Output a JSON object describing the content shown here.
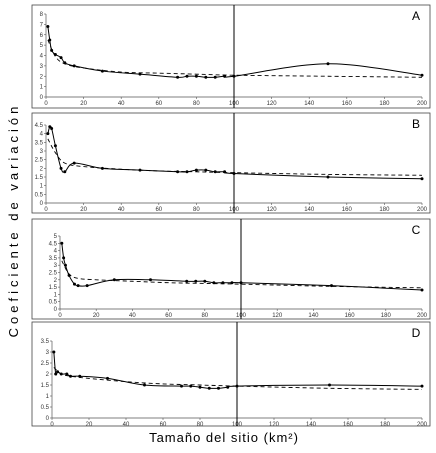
{
  "figure": {
    "ylabel": "Coeficiente de variación",
    "xlabel": "Tamaño del sitio (km²)"
  },
  "chart_data": [
    {
      "type": "line",
      "label": "A",
      "xlim": [
        0,
        200
      ],
      "ylim": [
        0,
        8
      ],
      "xticks": [
        0,
        20,
        40,
        60,
        80,
        100,
        120,
        140,
        160,
        180,
        200
      ],
      "yticks": [
        0,
        1,
        2,
        3,
        4,
        5,
        6,
        7,
        8
      ],
      "reference_line_x": 100,
      "series": [
        {
          "style": "solid-with-markers",
          "x": [
            1,
            2,
            3,
            5,
            8,
            10,
            15,
            30,
            50,
            70,
            75,
            80,
            85,
            90,
            95,
            100,
            150,
            200
          ],
          "y": [
            6.8,
            5.5,
            4.5,
            4.1,
            3.8,
            3.3,
            3.0,
            2.5,
            2.2,
            1.9,
            2.0,
            2.0,
            1.9,
            1.9,
            2.0,
            2.0,
            3.2,
            2.1
          ]
        },
        {
          "style": "dashed",
          "x": [
            1,
            5,
            10,
            20,
            40,
            60,
            80,
            100,
            150,
            200
          ],
          "y": [
            5.5,
            3.9,
            3.2,
            2.8,
            2.4,
            2.3,
            2.2,
            2.1,
            2.0,
            1.9
          ]
        }
      ]
    },
    {
      "type": "line",
      "label": "B",
      "xlim": [
        0,
        200
      ],
      "ylim": [
        0,
        4.5
      ],
      "xticks": [
        0,
        20,
        40,
        60,
        80,
        100,
        120,
        140,
        160,
        180,
        200
      ],
      "yticks": [
        0,
        0.5,
        1,
        1.5,
        2,
        2.5,
        3,
        3.5,
        4,
        4.5
      ],
      "reference_line_x": 100,
      "series": [
        {
          "style": "solid-with-markers",
          "x": [
            1,
            2,
            3,
            5,
            8,
            10,
            15,
            30,
            50,
            70,
            75,
            80,
            85,
            90,
            95,
            100,
            150,
            200
          ],
          "y": [
            4.0,
            4.4,
            4.3,
            3.3,
            2.0,
            1.8,
            2.3,
            2.0,
            1.9,
            1.8,
            1.8,
            1.9,
            1.9,
            1.8,
            1.8,
            1.7,
            1.5,
            1.4
          ]
        },
        {
          "style": "dashed",
          "x": [
            1,
            5,
            10,
            20,
            40,
            60,
            80,
            100,
            150,
            200
          ],
          "y": [
            3.7,
            2.9,
            2.3,
            2.1,
            1.95,
            1.85,
            1.8,
            1.75,
            1.65,
            1.6
          ]
        }
      ]
    },
    {
      "type": "line",
      "label": "C",
      "xlim": [
        0,
        200
      ],
      "ylim": [
        0,
        5
      ],
      "xticks": [
        0,
        20,
        40,
        60,
        80,
        100,
        120,
        140,
        160,
        180,
        200
      ],
      "ytick_labels": [
        "0",
        "0.5",
        "1",
        "1.5",
        "2",
        "2.5",
        "3",
        "3.5",
        "4",
        "4.5",
        "5"
      ],
      "reference_line_x": 100,
      "series": [
        {
          "style": "solid-with-markers",
          "x": [
            1,
            2,
            3,
            5,
            8,
            10,
            15,
            30,
            50,
            70,
            75,
            80,
            85,
            90,
            95,
            100,
            150,
            200
          ],
          "y": [
            4.5,
            3.5,
            3.0,
            2.3,
            1.7,
            1.6,
            1.6,
            2.0,
            2.0,
            1.9,
            1.9,
            1.9,
            1.8,
            1.8,
            1.8,
            1.8,
            1.6,
            1.3
          ]
        },
        {
          "style": "dashed",
          "x": [
            1,
            5,
            10,
            20,
            40,
            60,
            80,
            100,
            150,
            200
          ],
          "y": [
            3.3,
            2.4,
            2.1,
            2.0,
            1.9,
            1.8,
            1.75,
            1.7,
            1.55,
            1.45
          ]
        }
      ]
    },
    {
      "type": "line",
      "label": "D",
      "xlim": [
        0,
        200
      ],
      "ylim": [
        0,
        3.5
      ],
      "xticks": [
        0,
        20,
        40,
        60,
        80,
        100,
        120,
        140,
        160,
        180,
        200
      ],
      "yticks": [
        0,
        0.5,
        1,
        1.5,
        2,
        2.5,
        3,
        3.5
      ],
      "reference_line_x": 100,
      "series": [
        {
          "style": "solid-with-markers",
          "x": [
            1,
            2,
            3,
            5,
            8,
            10,
            15,
            30,
            50,
            70,
            75,
            80,
            85,
            90,
            95,
            100,
            150,
            200
          ],
          "y": [
            3.0,
            2.0,
            2.1,
            2.0,
            2.0,
            1.9,
            1.9,
            1.8,
            1.5,
            1.45,
            1.45,
            1.4,
            1.35,
            1.35,
            1.4,
            1.45,
            1.5,
            1.45
          ]
        },
        {
          "style": "dashed",
          "x": [
            1,
            5,
            10,
            20,
            40,
            60,
            80,
            100,
            150,
            200
          ],
          "y": [
            2.3,
            2.0,
            1.9,
            1.8,
            1.65,
            1.55,
            1.5,
            1.45,
            1.35,
            1.3
          ]
        }
      ]
    }
  ]
}
